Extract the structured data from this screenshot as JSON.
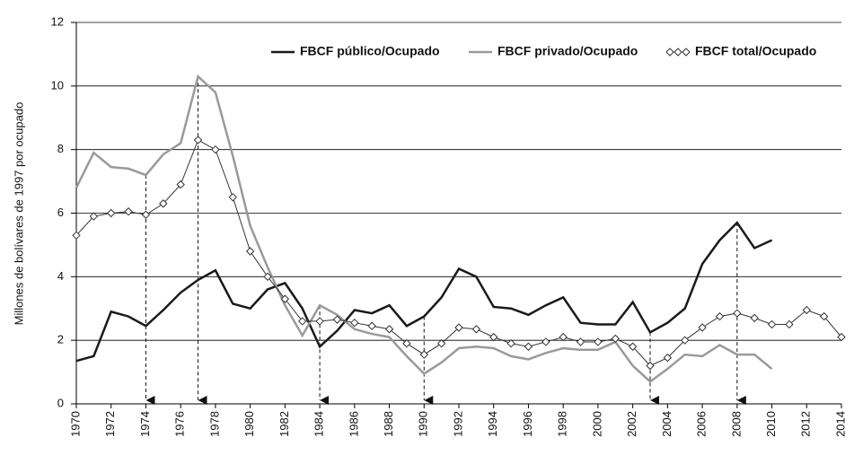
{
  "chart_data": {
    "type": "line",
    "y_label": "Millones de bolívares de 1997 por ocupado",
    "x": [
      1970,
      1971,
      1972,
      1973,
      1974,
      1975,
      1976,
      1977,
      1978,
      1979,
      1980,
      1981,
      1982,
      1983,
      1984,
      1985,
      1986,
      1987,
      1988,
      1989,
      1990,
      1991,
      1992,
      1993,
      1994,
      1995,
      1996,
      1997,
      1998,
      1999,
      2000,
      2001,
      2002,
      2003,
      2004,
      2005,
      2006,
      2007,
      2008,
      2009,
      2010,
      2011,
      2012,
      2013,
      2014
    ],
    "series": [
      {
        "name": "FBCF público/Ocupado",
        "color": "#1a1a1a",
        "style": "solid",
        "values": [
          1.35,
          1.5,
          2.9,
          2.75,
          2.45,
          2.95,
          3.5,
          3.9,
          4.2,
          3.15,
          3.0,
          3.6,
          3.8,
          3.0,
          1.8,
          2.3,
          2.95,
          2.85,
          3.1,
          2.45,
          2.75,
          3.35,
          4.25,
          4.0,
          3.05,
          3.0,
          2.8,
          3.1,
          3.35,
          2.55,
          2.5,
          2.5,
          3.2,
          2.25,
          2.55,
          3.0,
          4.4,
          5.15,
          5.7,
          4.9,
          5.15,
          null,
          null,
          null,
          null
        ]
      },
      {
        "name": "FBCF privado/Ocupado",
        "color": "#9a9a9a",
        "style": "solid",
        "values": [
          6.8,
          7.9,
          7.45,
          7.4,
          7.2,
          7.85,
          8.2,
          10.3,
          9.8,
          7.8,
          5.6,
          4.3,
          3.1,
          2.15,
          3.1,
          2.8,
          2.35,
          2.2,
          2.1,
          1.5,
          0.95,
          1.3,
          1.75,
          1.8,
          1.75,
          1.5,
          1.4,
          1.6,
          1.75,
          1.7,
          1.7,
          1.95,
          1.2,
          0.7,
          1.1,
          1.55,
          1.5,
          1.85,
          1.55,
          1.55,
          1.1,
          null,
          null,
          null,
          null
        ]
      },
      {
        "name": "FBCF total/Ocupado",
        "color": "#333333",
        "style": "diamond",
        "values": [
          5.3,
          5.9,
          6.0,
          6.05,
          5.95,
          6.3,
          6.9,
          8.3,
          8.0,
          6.5,
          4.8,
          4.0,
          3.3,
          2.6,
          2.6,
          2.65,
          2.55,
          2.45,
          2.35,
          1.9,
          1.55,
          1.9,
          2.4,
          2.35,
          2.1,
          1.9,
          1.8,
          1.95,
          2.1,
          1.95,
          1.95,
          2.05,
          1.8,
          1.2,
          1.45,
          2.0,
          2.4,
          2.75,
          2.85,
          2.7,
          2.5,
          2.5,
          2.95,
          2.75,
          2.1
        ]
      }
    ],
    "arrows": [
      1974,
      1977,
      1984,
      1990,
      2003,
      2008
    ],
    "xlim": [
      1970,
      2014
    ],
    "xticks": [
      1970,
      1972,
      1974,
      1976,
      1978,
      1980,
      1982,
      1984,
      1986,
      1988,
      1990,
      1992,
      1994,
      1996,
      1998,
      2000,
      2002,
      2004,
      2006,
      2008,
      2010,
      2012,
      2014
    ],
    "ylim": [
      0,
      12
    ],
    "yticks": [
      0,
      2,
      4,
      6,
      8,
      10,
      12
    ],
    "grid": true,
    "legend": "top-right"
  }
}
